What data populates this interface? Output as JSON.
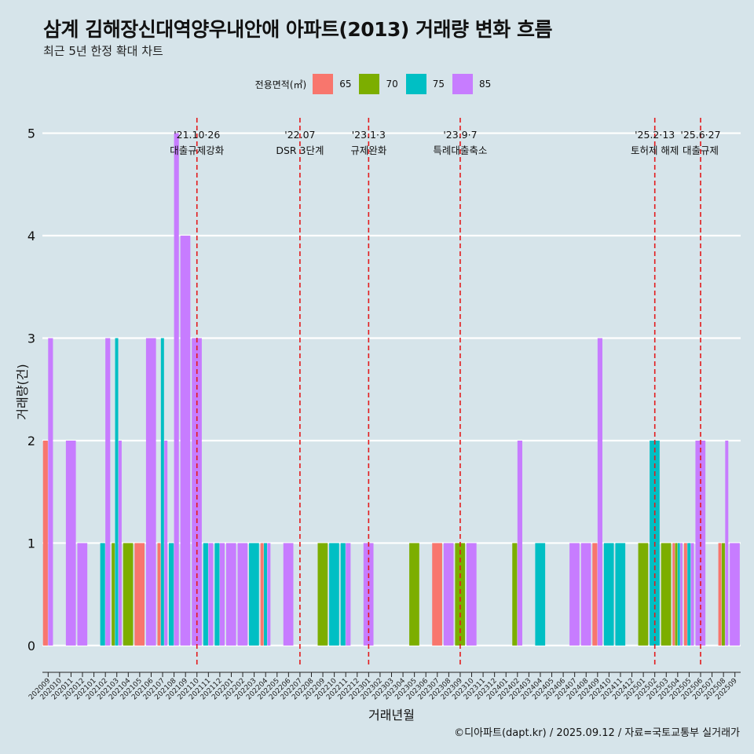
{
  "title": "삼계 김해장신대역양우내안애 아파트(2013) 거래량 변화 흐름",
  "subtitle": "최근 5년 한정 확대 차트",
  "caption": "©디아파트(dapt.kr) / 2025.09.12 / 자료=국토교통부 실거래가",
  "legend": {
    "title": "전용면적(㎡)",
    "items": [
      {
        "label": "65",
        "color": "#F8766D"
      },
      {
        "label": "70",
        "color": "#7CAE00"
      },
      {
        "label": "75",
        "color": "#00BFC4"
      },
      {
        "label": "85",
        "color": "#C77CFF"
      }
    ]
  },
  "chart_data": {
    "type": "bar",
    "xlabel": "거래년월",
    "ylabel": "거래량(건)",
    "ylim": [
      -0.2,
      5.15
    ],
    "yticks": [
      0,
      1,
      2,
      3,
      4,
      5
    ],
    "grid": true,
    "legend_position": "top",
    "categories": [
      "202009",
      "202010",
      "202011",
      "202012",
      "202101",
      "202102",
      "202103",
      "202104",
      "202105",
      "202106",
      "202107",
      "202108",
      "202109",
      "202110",
      "202111",
      "202112",
      "202201",
      "202202",
      "202203",
      "202204",
      "202205",
      "202206",
      "202207",
      "202208",
      "202209",
      "202210",
      "202211",
      "202212",
      "202301",
      "202302",
      "202303",
      "202304",
      "202305",
      "202306",
      "202307",
      "202308",
      "202309",
      "202310",
      "202311",
      "202312",
      "202401",
      "202402",
      "202403",
      "202404",
      "202405",
      "202406",
      "202407",
      "202408",
      "202409",
      "202410",
      "202411",
      "202412",
      "202501",
      "202502",
      "202503",
      "202504",
      "202505",
      "202506",
      "202507",
      "202508",
      "202509"
    ],
    "series": [
      {
        "name": "65",
        "color": "#F8766D",
        "values": [
          2,
          0,
          0,
          0,
          0,
          0,
          0,
          0,
          1,
          0,
          1,
          0,
          0,
          0,
          0,
          0,
          0,
          0,
          0,
          1,
          0,
          0,
          0,
          0,
          0,
          0,
          0,
          0,
          0,
          0,
          0,
          0,
          0,
          0,
          1,
          0,
          0,
          0,
          0,
          0,
          0,
          0,
          0,
          0,
          0,
          0,
          0,
          0,
          1,
          0,
          0,
          0,
          0,
          0,
          0,
          1,
          1,
          0,
          0,
          1,
          0
        ]
      },
      {
        "name": "70",
        "color": "#7CAE00",
        "values": [
          0,
          0,
          0,
          0,
          0,
          0,
          1,
          1,
          0,
          0,
          0,
          0,
          0,
          0,
          0,
          0,
          0,
          0,
          0,
          0,
          0,
          0,
          0,
          0,
          1,
          0,
          0,
          0,
          0,
          0,
          0,
          0,
          1,
          0,
          0,
          0,
          1,
          0,
          0,
          0,
          0,
          1,
          0,
          0,
          0,
          0,
          0,
          0,
          0,
          0,
          0,
          0,
          1,
          0,
          1,
          1,
          0,
          0,
          0,
          1,
          0
        ]
      },
      {
        "name": "75",
        "color": "#00BFC4",
        "values": [
          0,
          0,
          0,
          0,
          0,
          1,
          3,
          0,
          0,
          0,
          3,
          1,
          0,
          0,
          1,
          1,
          0,
          0,
          1,
          1,
          0,
          0,
          0,
          0,
          0,
          1,
          1,
          0,
          0,
          0,
          0,
          0,
          0,
          0,
          0,
          0,
          0,
          0,
          0,
          0,
          0,
          0,
          0,
          1,
          0,
          0,
          0,
          0,
          0,
          1,
          1,
          0,
          0,
          2,
          0,
          1,
          1,
          0,
          0,
          0,
          0
        ]
      },
      {
        "name": "85",
        "color": "#C77CFF",
        "values": [
          3,
          0,
          2,
          1,
          0,
          3,
          2,
          0,
          0,
          3,
          2,
          5,
          4,
          3,
          1,
          1,
          1,
          1,
          0,
          1,
          0,
          1,
          0,
          0,
          0,
          0,
          1,
          0,
          1,
          0,
          0,
          0,
          0,
          0,
          0,
          1,
          0,
          1,
          0,
          0,
          0,
          2,
          0,
          0,
          0,
          0,
          1,
          1,
          3,
          0,
          0,
          0,
          0,
          0,
          0,
          1,
          1,
          2,
          0,
          2,
          1
        ]
      }
    ],
    "annotations": [
      {
        "month": "202110",
        "line1": "'21.10·26",
        "line2": "대출규제강화"
      },
      {
        "month": "202207",
        "line1": "'22.07",
        "line2": "DSR 3단계"
      },
      {
        "month": "202301",
        "line1": "'23.1·3",
        "line2": "규제완화"
      },
      {
        "month": "202309",
        "line1": "'23.9·7",
        "line2": "특례대출축소"
      },
      {
        "month": "202502",
        "line1": "'25.2·13",
        "line2": "토허제 해제"
      },
      {
        "month": "202506",
        "line1": "'25.6·27",
        "line2": "대출규제"
      }
    ]
  }
}
